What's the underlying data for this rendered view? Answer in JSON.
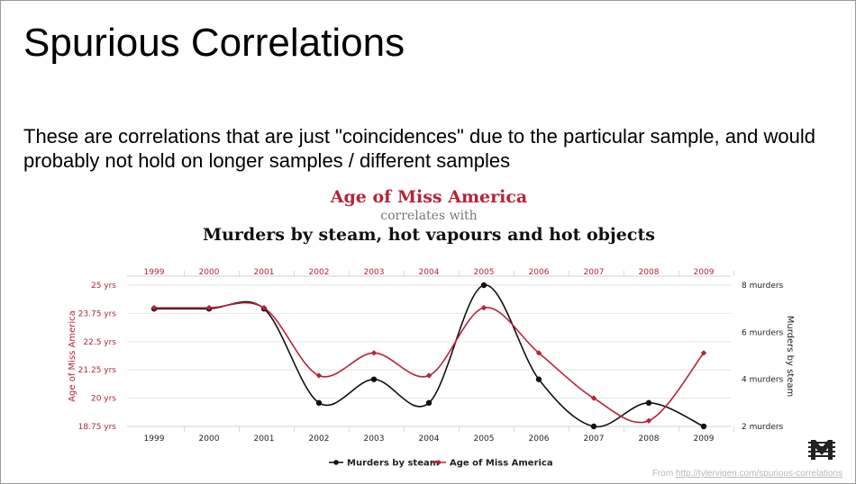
{
  "slide": {
    "title": "Spurious Correlations",
    "subtitle": "These are correlations that are just \"coincidences\" due to the particular sample, and would probably not hold on longer samples / different samples",
    "footer_prefix": "From ",
    "footer_link": "http://tylervigen.com/spurious-correlations"
  },
  "chart_data": {
    "type": "line",
    "title_line1": "Age of Miss America",
    "title_line2": "correlates with",
    "title_line3": "Murders by steam, hot vapours and hot objects",
    "x": [
      "1999",
      "2000",
      "2001",
      "2002",
      "2003",
      "2004",
      "2005",
      "2006",
      "2007",
      "2008",
      "2009"
    ],
    "y_left": {
      "label": "Age of Miss America",
      "ticks": [
        "25 yrs",
        "23.75 yrs",
        "22.5 yrs",
        "21.25 yrs",
        "20 yrs",
        "18.75 yrs"
      ],
      "range": [
        18.75,
        25
      ]
    },
    "y_right": {
      "label": "Murders by steam",
      "ticks": [
        "8 murders",
        "6 murders",
        "4 murders",
        "2 murders"
      ],
      "range": [
        2,
        8
      ]
    },
    "series": [
      {
        "name": "Murders by steam",
        "axis": "right",
        "color": "#111111",
        "values": [
          7,
          7,
          7,
          3,
          4,
          3,
          8,
          4,
          2,
          3,
          2
        ]
      },
      {
        "name": "Age of Miss America",
        "axis": "left",
        "color": "#b5243b",
        "values": [
          24,
          24,
          24,
          21,
          22,
          21,
          24,
          22,
          20,
          19,
          22
        ]
      }
    ],
    "legend_position": "bottom-center",
    "grid": true
  }
}
